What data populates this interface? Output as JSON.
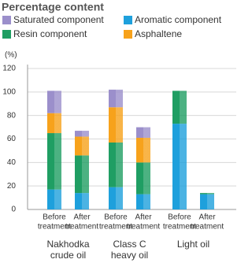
{
  "chart_data": {
    "type": "stacked-bar",
    "title": "Percentage content",
    "y_label": "(%)",
    "categories": [
      [
        "Before",
        "treatment"
      ],
      [
        "After",
        "treatment"
      ],
      [
        "Before",
        "treatment"
      ],
      [
        "After",
        "treatment"
      ],
      [
        "Before",
        "treatment"
      ],
      [
        "After",
        "treatment"
      ]
    ],
    "groups": [
      [
        "Nakhodka",
        "crude oil"
      ],
      [
        "Class C",
        "heavy oil"
      ],
      [
        "Light oil"
      ]
    ],
    "series": [
      {
        "name": "Aromatic component",
        "color": "#1ea0dc",
        "values": [
          17,
          14,
          19,
          13,
          73,
          13
        ]
      },
      {
        "name": "Resin component",
        "color": "#1f9e63",
        "values": [
          48,
          32,
          38,
          27,
          28,
          1
        ]
      },
      {
        "name": "Asphaltene",
        "color": "#f7a21b",
        "values": [
          17,
          16,
          30,
          21,
          0,
          0
        ]
      },
      {
        "name": "Saturated component",
        "color": "#9b8fcb",
        "values": [
          19,
          5,
          15,
          9,
          0,
          0
        ]
      }
    ],
    "ylim": [
      0,
      120
    ],
    "yticks": [
      0,
      20,
      40,
      60,
      80,
      100,
      120
    ],
    "grid": true
  }
}
